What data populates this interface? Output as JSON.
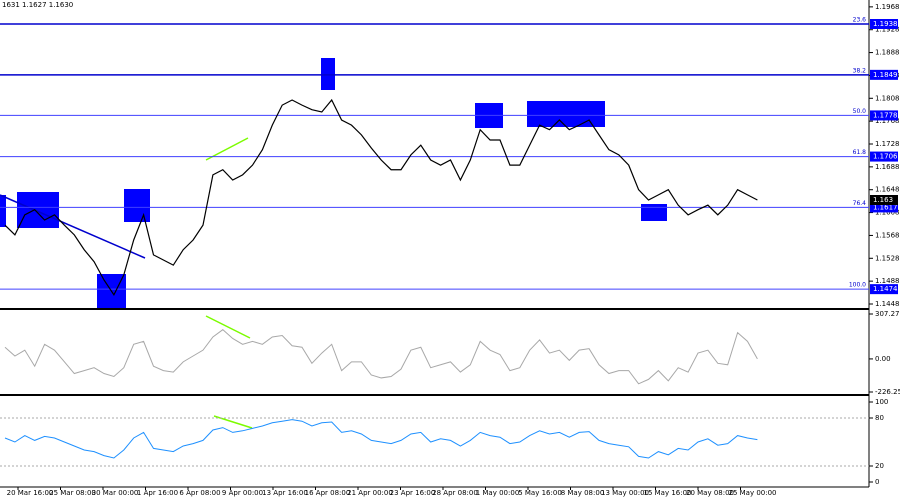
{
  "header": "1631 1.1627 1.1630",
  "time_axis": [
    "20 Mar 16:00",
    "25 Mar 08:00",
    "30 Mar 00:00",
    "1 Apr 16:00",
    "6 Apr 08:00",
    "9 Apr 00:00",
    "13 Apr 16:00",
    "16 Apr 08:00",
    "21 Apr 00:00",
    "23 Apr 16:00",
    "28 Apr 08:00",
    "1 May 00:00",
    "5 May 16:00",
    "8 May 08:00",
    "13 May 00:00",
    "15 May 16:00",
    "20 May 08:00",
    "25 May 00:00"
  ],
  "chart_data": [
    {
      "type": "line",
      "ylim": [
        1.1441,
        1.198
      ],
      "yticks": [
        1.1968,
        1.1928,
        1.1888,
        1.1848,
        1.1808,
        1.1768,
        1.1728,
        1.1688,
        1.1648,
        1.1608,
        1.1568,
        1.1528,
        1.1488,
        1.1448
      ],
      "levels": [
        {
          "value": 1.1938,
          "fib": "23.6"
        },
        {
          "value": 1.1849,
          "fib": "38.2"
        },
        {
          "value": 1.1778,
          "fib": "50.0"
        },
        {
          "value": 1.1706,
          "fib": "61.8"
        },
        {
          "value": 1.1617,
          "fib": "76.4"
        },
        {
          "value": 1.1474,
          "fib": "100.0"
        }
      ],
      "last_price": 1.163,
      "series": [
        {
          "color": "#000000",
          "values": [
            1.1586,
            1.1569,
            1.1604,
            1.1613,
            1.1595,
            1.1604,
            1.1586,
            1.1569,
            1.1543,
            1.1522,
            1.149,
            1.1464,
            1.1499,
            1.156,
            1.1604,
            1.1534,
            1.1525,
            1.1516,
            1.1543,
            1.156,
            1.1586,
            1.1674,
            1.1683,
            1.1665,
            1.1674,
            1.1691,
            1.1718,
            1.1761,
            1.1796,
            1.1805,
            1.1796,
            1.1788,
            1.1784,
            1.1805,
            1.177,
            1.1761,
            1.1744,
            1.1721,
            1.17,
            1.1683,
            1.1683,
            1.1709,
            1.1726,
            1.17,
            1.1691,
            1.17,
            1.1665,
            1.17,
            1.1753,
            1.1735,
            1.1735,
            1.1691,
            1.1691,
            1.1726,
            1.1761,
            1.1753,
            1.177,
            1.1753,
            1.1761,
            1.177,
            1.1744,
            1.1718,
            1.1709,
            1.1691,
            1.1648,
            1.163,
            1.1639,
            1.1648,
            1.1621,
            1.1604,
            1.1613,
            1.1621,
            1.1604,
            1.1621,
            1.1648,
            1.1639,
            1.163
          ]
        }
      ]
    },
    {
      "type": "line",
      "ylim": [
        -226.256,
        307.2712
      ],
      "yticks": [
        307.2712,
        {
          "value": 0,
          "label": "0.00"
        },
        -226.256
      ],
      "series": [
        {
          "color": "#a8a8a8",
          "values": [
            80,
            20,
            60,
            -50,
            100,
            60,
            -20,
            -100,
            -80,
            -60,
            -100,
            -120,
            -60,
            100,
            120,
            -50,
            -80,
            -90,
            -20,
            20,
            60,
            150,
            200,
            140,
            100,
            120,
            100,
            150,
            160,
            90,
            80,
            -30,
            40,
            100,
            -80,
            -20,
            -20,
            -110,
            -130,
            -120,
            -70,
            60,
            80,
            -60,
            -40,
            -20,
            -90,
            -40,
            120,
            60,
            30,
            -80,
            -60,
            60,
            130,
            40,
            60,
            -10,
            60,
            70,
            -40,
            -100,
            -80,
            -80,
            -170,
            -140,
            -80,
            -150,
            -60,
            -90,
            40,
            60,
            -30,
            -40,
            180,
            120,
            0
          ]
        }
      ]
    },
    {
      "type": "line",
      "ylim": [
        0,
        100
      ],
      "yticks": [
        100,
        80,
        20,
        0
      ],
      "series": [
        {
          "color": "#1e90ff",
          "values": [
            55,
            50,
            58,
            52,
            57,
            55,
            50,
            45,
            40,
            38,
            33,
            30,
            40,
            55,
            62,
            42,
            40,
            38,
            45,
            48,
            52,
            65,
            68,
            62,
            64,
            67,
            70,
            74,
            76,
            78,
            76,
            70,
            74,
            75,
            62,
            64,
            60,
            52,
            50,
            48,
            52,
            60,
            62,
            50,
            54,
            52,
            45,
            52,
            62,
            58,
            56,
            48,
            50,
            58,
            64,
            60,
            62,
            56,
            62,
            63,
            52,
            48,
            46,
            44,
            32,
            30,
            38,
            34,
            42,
            40,
            50,
            54,
            46,
            48,
            58,
            55,
            53
          ]
        }
      ]
    }
  ]
}
